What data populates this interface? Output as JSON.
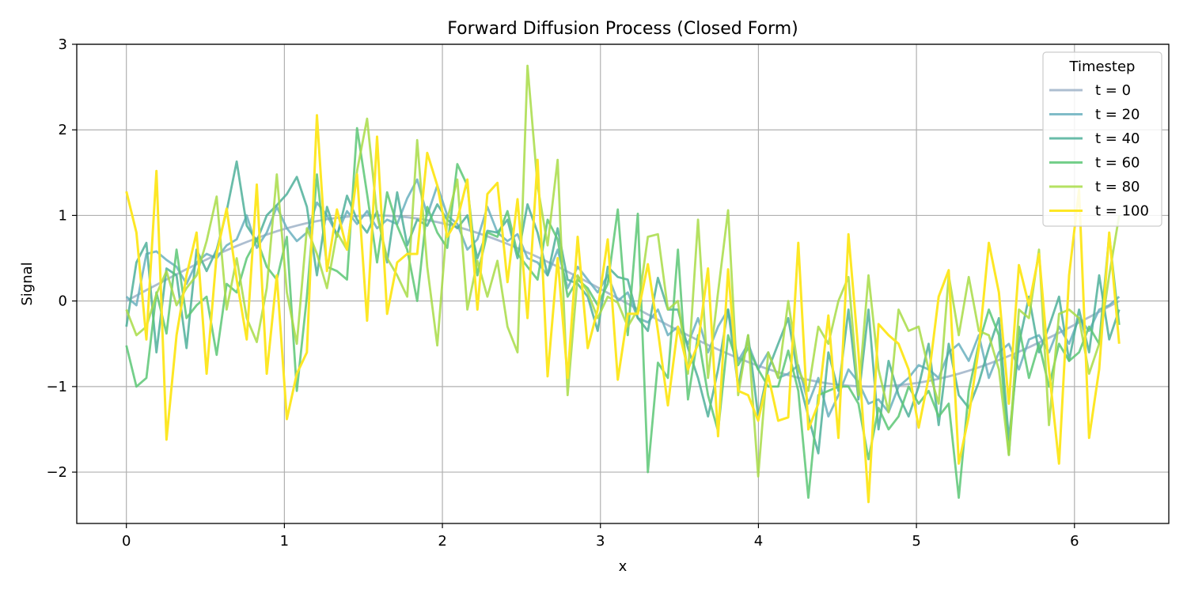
{
  "chart_data": {
    "type": "line",
    "title": "Forward Diffusion Process (Closed Form)",
    "xlabel": "x",
    "ylabel": "Signal",
    "xlim": [
      -0.314,
      6.597
    ],
    "ylim": [
      -2.6,
      3.0
    ],
    "xticks": [
      0,
      1,
      2,
      3,
      4,
      5,
      6
    ],
    "yticks": [
      -2,
      -1,
      0,
      1,
      2,
      3
    ],
    "xtick_labels": [
      "0",
      "1",
      "2",
      "3",
      "4",
      "5",
      "6"
    ],
    "ytick_labels": [
      "−2",
      "−1",
      "0",
      "1",
      "2",
      "3"
    ],
    "grid": true,
    "legend": {
      "title": "Timestep",
      "placement": "top-right"
    },
    "x": [
      0.0,
      0.0635,
      0.1269,
      0.1904,
      0.2539,
      0.3173,
      0.3808,
      0.4443,
      0.5077,
      0.5712,
      0.6347,
      0.6981,
      0.7616,
      0.8251,
      0.8885,
      0.952,
      1.0155,
      1.0789,
      1.1424,
      1.2059,
      1.2693,
      1.3328,
      1.3963,
      1.4597,
      1.5232,
      1.5867,
      1.6501,
      1.7136,
      1.7771,
      1.8405,
      1.904,
      1.9675,
      2.0309,
      2.0944,
      2.1579,
      2.2213,
      2.2848,
      2.3483,
      2.4117,
      2.4752,
      2.5387,
      2.6021,
      2.6656,
      2.7291,
      2.7925,
      2.856,
      2.9195,
      2.9829,
      3.0464,
      3.1099,
      3.1733,
      3.2368,
      3.3003,
      3.3637,
      3.4272,
      3.4907,
      3.5541,
      3.6176,
      3.6811,
      3.7445,
      3.808,
      3.8715,
      3.9349,
      3.9984,
      4.0619,
      4.1253,
      4.1888,
      4.2523,
      4.3157,
      4.3792,
      4.4427,
      4.5061,
      4.5696,
      4.6331,
      4.6965,
      4.76,
      4.8235,
      4.8869,
      4.9504,
      5.0139,
      5.0773,
      5.1408,
      5.2043,
      5.2677,
      5.3312,
      5.3947,
      5.4581,
      5.5216,
      5.5851,
      5.6485,
      5.712,
      5.7755,
      5.8389,
      5.9024,
      5.9659,
      6.0293,
      6.0928,
      6.1563,
      6.2197,
      6.2832
    ],
    "series": [
      {
        "name": "t = 0",
        "color": "#9fb3c8",
        "values": [
          0.0,
          0.063,
          0.127,
          0.189,
          0.251,
          0.312,
          0.372,
          0.43,
          0.486,
          0.541,
          0.593,
          0.643,
          0.69,
          0.734,
          0.776,
          0.815,
          0.85,
          0.881,
          0.91,
          0.934,
          0.955,
          0.972,
          0.985,
          0.994,
          0.999,
          1.0,
          0.997,
          0.99,
          0.979,
          0.964,
          0.945,
          0.922,
          0.896,
          0.866,
          0.833,
          0.796,
          0.756,
          0.713,
          0.667,
          0.618,
          0.567,
          0.514,
          0.458,
          0.401,
          0.342,
          0.282,
          0.22,
          0.158,
          0.095,
          0.032,
          -0.032,
          -0.095,
          -0.158,
          -0.22,
          -0.282,
          -0.342,
          -0.401,
          -0.458,
          -0.514,
          -0.567,
          -0.618,
          -0.667,
          -0.713,
          -0.756,
          -0.796,
          -0.833,
          -0.866,
          -0.896,
          -0.922,
          -0.945,
          -0.964,
          -0.979,
          -0.99,
          -0.997,
          -1.0,
          -0.999,
          -0.994,
          -0.985,
          -0.972,
          -0.955,
          -0.934,
          -0.91,
          -0.881,
          -0.85,
          -0.815,
          -0.776,
          -0.734,
          -0.69,
          -0.643,
          -0.593,
          -0.541,
          -0.486,
          -0.43,
          -0.372,
          -0.312,
          -0.251,
          -0.189,
          -0.127,
          -0.063,
          0.0
        ]
      },
      {
        "name": "t = 20",
        "color": "#6ab0be",
        "values": [
          0.05,
          -0.05,
          0.55,
          0.58,
          0.48,
          0.4,
          0.2,
          0.45,
          0.55,
          0.5,
          0.65,
          0.72,
          1.0,
          0.62,
          0.8,
          1.1,
          0.85,
          0.7,
          0.8,
          1.15,
          1.0,
          0.78,
          1.05,
          0.9,
          1.05,
          0.85,
          0.95,
          0.9,
          1.2,
          1.42,
          1.0,
          1.35,
          1.0,
          0.9,
          0.6,
          0.72,
          1.1,
          0.8,
          0.7,
          0.78,
          0.5,
          0.45,
          0.3,
          0.6,
          0.15,
          0.4,
          0.25,
          0.1,
          0.3,
          0.0,
          0.1,
          -0.2,
          -0.25,
          -0.1,
          -0.4,
          -0.3,
          -0.5,
          -0.2,
          -0.6,
          -0.3,
          -0.1,
          -0.7,
          -0.5,
          -0.8,
          -0.6,
          -0.9,
          -0.85,
          -0.75,
          -1.2,
          -0.9,
          -1.35,
          -1.1,
          -0.8,
          -0.95,
          -1.2,
          -1.15,
          -1.3,
          -1.0,
          -0.9,
          -0.75,
          -0.8,
          -0.9,
          -0.6,
          -0.5,
          -0.7,
          -0.4,
          -0.9,
          -0.6,
          -0.5,
          -0.8,
          -0.45,
          -0.4,
          -0.6,
          -0.3,
          -0.5,
          -0.2,
          -0.35,
          -0.1,
          -0.05,
          0.05
        ]
      },
      {
        "name": "t = 40",
        "color": "#4fb09a",
        "values": [
          -0.3,
          0.45,
          0.68,
          -0.6,
          0.38,
          0.3,
          -0.55,
          0.6,
          0.35,
          0.6,
          1.05,
          1.63,
          0.88,
          0.7,
          1.0,
          1.12,
          1.25,
          1.45,
          1.1,
          0.3,
          1.1,
          0.75,
          1.23,
          0.95,
          0.8,
          1.05,
          0.45,
          1.27,
          0.65,
          0.95,
          0.88,
          1.13,
          0.95,
          0.85,
          1.0,
          0.5,
          0.82,
          0.8,
          0.95,
          0.5,
          1.13,
          0.8,
          0.3,
          0.85,
          0.25,
          0.2,
          0.05,
          -0.35,
          0.4,
          0.28,
          0.25,
          -0.2,
          -0.35,
          0.27,
          -0.1,
          -0.1,
          -0.55,
          -0.9,
          -1.35,
          -0.8,
          -0.1,
          -1.0,
          -0.4,
          -1.35,
          -0.8,
          -0.5,
          -0.2,
          -0.9,
          -1.35,
          -1.78,
          -0.6,
          -1.05,
          -0.1,
          -1.15,
          -0.1,
          -1.5,
          -0.7,
          -1.1,
          -1.35,
          -1.0,
          -0.5,
          -1.45,
          -0.5,
          -1.1,
          -1.25,
          -0.95,
          -0.55,
          -0.2,
          -1.62,
          -0.5,
          0.05,
          -0.6,
          -0.3,
          0.05,
          -0.7,
          -0.1,
          -0.6,
          0.3,
          -0.45,
          -0.1
        ]
      },
      {
        "name": "t = 60",
        "color": "#5cc776",
        "values": [
          -0.52,
          -1.0,
          -0.9,
          0.1,
          -0.38,
          0.6,
          -0.2,
          -0.05,
          0.05,
          -0.63,
          0.2,
          0.1,
          0.5,
          0.72,
          0.4,
          0.25,
          0.75,
          -1.05,
          0.05,
          1.48,
          0.4,
          0.35,
          0.25,
          2.02,
          1.25,
          0.45,
          1.27,
          0.88,
          0.6,
          0.0,
          1.1,
          0.8,
          0.62,
          1.6,
          1.35,
          0.3,
          0.8,
          0.75,
          1.05,
          0.55,
          0.4,
          0.25,
          0.95,
          0.72,
          0.05,
          0.25,
          0.15,
          -0.05,
          0.2,
          1.07,
          -0.4,
          1.02,
          -2.0,
          -0.72,
          -0.9,
          0.6,
          -1.15,
          -0.4,
          -1.1,
          -1.52,
          -0.4,
          -0.75,
          -0.55,
          -0.8,
          -1.0,
          -1.0,
          -0.58,
          -1.05,
          -2.3,
          -1.1,
          -1.05,
          -1.0,
          -1.0,
          -1.2,
          -1.85,
          -1.25,
          -1.5,
          -1.35,
          -1.0,
          -1.2,
          -1.05,
          -1.35,
          -1.2,
          -2.3,
          -1.05,
          -0.5,
          -0.1,
          -0.4,
          -1.8,
          -0.3,
          -0.9,
          -0.5,
          -1.0,
          -0.5,
          -0.7,
          -0.6,
          -0.3,
          -0.5,
          0.77,
          -0.28
        ]
      },
      {
        "name": "t = 80",
        "color": "#a8dc46",
        "values": [
          -0.1,
          -0.4,
          -0.3,
          0.08,
          0.35,
          -0.05,
          0.15,
          0.3,
          0.7,
          1.22,
          -0.1,
          0.5,
          -0.2,
          -0.48,
          0.15,
          1.48,
          0.1,
          -0.5,
          0.85,
          0.55,
          0.15,
          0.8,
          0.6,
          1.52,
          2.13,
          1.0,
          0.5,
          0.3,
          0.05,
          1.88,
          0.4,
          -0.52,
          0.95,
          1.42,
          -0.1,
          0.47,
          0.05,
          0.47,
          -0.3,
          -0.6,
          2.75,
          1.35,
          0.65,
          1.65,
          -1.1,
          0.3,
          0.1,
          -0.2,
          0.05,
          -0.02,
          -0.3,
          -0.1,
          0.75,
          0.78,
          -0.1,
          0.0,
          -0.85,
          0.95,
          -0.9,
          0.1,
          1.06,
          -1.1,
          -0.4,
          -2.05,
          -0.6,
          -0.9,
          0.0,
          -0.8,
          -1.05,
          -0.3,
          -0.5,
          0.0,
          0.28,
          -1.1,
          0.3,
          -0.8,
          -1.3,
          -0.1,
          -0.35,
          -0.3,
          -0.8,
          -1.2,
          0.3,
          -0.4,
          0.28,
          -0.35,
          -0.4,
          -0.8,
          -1.8,
          -0.1,
          -0.2,
          0.6,
          -1.45,
          -0.15,
          -0.1,
          -0.2,
          -0.85,
          -0.5,
          0.3,
          1.0
        ]
      },
      {
        "name": "t = 100",
        "color": "#fde725",
        "values": [
          1.28,
          0.8,
          -0.45,
          1.52,
          -1.62,
          -0.4,
          0.3,
          0.8,
          -0.85,
          0.55,
          1.08,
          0.25,
          -0.45,
          1.36,
          -0.85,
          0.3,
          -1.38,
          -0.85,
          -0.6,
          2.17,
          0.35,
          1.07,
          0.6,
          1.48,
          -0.23,
          1.92,
          -0.15,
          0.45,
          0.55,
          0.55,
          1.73,
          1.35,
          0.75,
          0.95,
          1.42,
          -0.1,
          1.25,
          1.38,
          0.22,
          1.19,
          -0.2,
          1.65,
          -0.88,
          0.5,
          -0.9,
          0.75,
          -0.55,
          -0.1,
          0.72,
          -0.92,
          -0.15,
          -0.15,
          0.43,
          -0.35,
          -1.22,
          -0.3,
          -0.8,
          -0.5,
          0.38,
          -1.58,
          0.37,
          -1.05,
          -1.1,
          -1.4,
          -0.87,
          -1.4,
          -1.36,
          0.68,
          -1.5,
          -1.2,
          -0.17,
          -1.6,
          0.78,
          -0.6,
          -2.35,
          -0.27,
          -0.4,
          -0.5,
          -0.8,
          -1.48,
          -0.9,
          0.05,
          0.36,
          -1.9,
          -1.35,
          -0.55,
          0.68,
          0.1,
          -1.2,
          0.42,
          -0.05,
          0.55,
          -0.8,
          -1.9,
          0.3,
          1.3,
          -1.6,
          -0.8,
          0.8,
          -0.5
        ]
      }
    ]
  }
}
